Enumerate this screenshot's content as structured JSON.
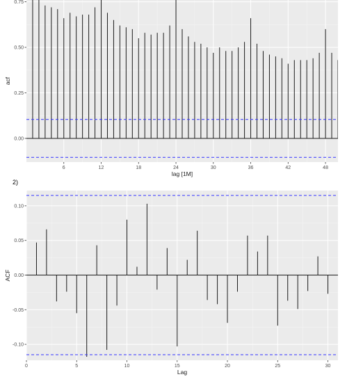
{
  "section_label": "2)",
  "chart_data": [
    {
      "type": "bar",
      "subtype": "acf",
      "xlabel": "lag [1M]",
      "ylabel": "acf",
      "xlim": [
        0,
        50
      ],
      "ylim": [
        -0.13,
        0.76
      ],
      "x_ticks": [
        6,
        12,
        18,
        24,
        30,
        36,
        42,
        48
      ],
      "y_ticks": [
        "0.00",
        "0.25",
        "0.50",
        "0.75"
      ],
      "y_tick_values": [
        0,
        0.25,
        0.5,
        0.75
      ],
      "confidence_bound": 0.104,
      "bound_color": "#3333ff",
      "bar_color": "#1a1a1a",
      "panel_bg": "#ebebeb",
      "grid": true,
      "lags": [
        1,
        2,
        3,
        4,
        5,
        6,
        7,
        8,
        9,
        10,
        11,
        12,
        13,
        14,
        15,
        16,
        17,
        18,
        19,
        20,
        21,
        22,
        23,
        24,
        25,
        26,
        27,
        28,
        29,
        30,
        31,
        32,
        33,
        34,
        35,
        36,
        37,
        38,
        39,
        40,
        41,
        42,
        43,
        44,
        45,
        46,
        47,
        48,
        49,
        50
      ],
      "values": [
        0.77,
        0.76,
        0.73,
        0.72,
        0.71,
        0.66,
        0.69,
        0.67,
        0.68,
        0.68,
        0.72,
        0.77,
        0.69,
        0.65,
        0.62,
        0.61,
        0.6,
        0.55,
        0.58,
        0.57,
        0.58,
        0.58,
        0.62,
        0.8,
        0.6,
        0.56,
        0.53,
        0.52,
        0.5,
        0.47,
        0.5,
        0.48,
        0.48,
        0.5,
        0.53,
        0.66,
        0.52,
        0.48,
        0.46,
        0.45,
        0.44,
        0.41,
        0.43,
        0.43,
        0.43,
        0.44,
        0.47,
        0.6,
        0.47,
        0.43
      ]
    },
    {
      "type": "bar",
      "subtype": "acf",
      "xlabel": "Lag",
      "ylabel": "ACF",
      "xlim": [
        0,
        31
      ],
      "ylim": [
        -0.123,
        0.122
      ],
      "x_ticks": [
        0,
        5,
        10,
        15,
        20,
        25,
        30
      ],
      "y_ticks": [
        "-0.10",
        "-0.05",
        "0.00",
        "0.05",
        "0.10"
      ],
      "y_tick_values": [
        -0.1,
        -0.05,
        0.0,
        0.05,
        0.1
      ],
      "confidence_bound": 0.115,
      "bound_color": "#3333ff",
      "bar_color": "#1a1a1a",
      "panel_bg": "#ebebeb",
      "grid": true,
      "lags": [
        1,
        2,
        3,
        4,
        5,
        6,
        7,
        8,
        9,
        10,
        11,
        12,
        13,
        14,
        15,
        16,
        17,
        18,
        19,
        20,
        21,
        22,
        23,
        24,
        25,
        26,
        27,
        28,
        29,
        30
      ],
      "values": [
        0.047,
        0.066,
        -0.038,
        -0.024,
        -0.055,
        -0.118,
        0.043,
        -0.108,
        -0.044,
        0.08,
        0.012,
        0.103,
        -0.021,
        0.039,
        -0.103,
        0.022,
        0.064,
        -0.036,
        -0.042,
        -0.069,
        -0.024,
        0.057,
        0.034,
        0.057,
        -0.073,
        -0.037,
        -0.049,
        -0.023,
        0.027,
        -0.027
      ]
    }
  ]
}
